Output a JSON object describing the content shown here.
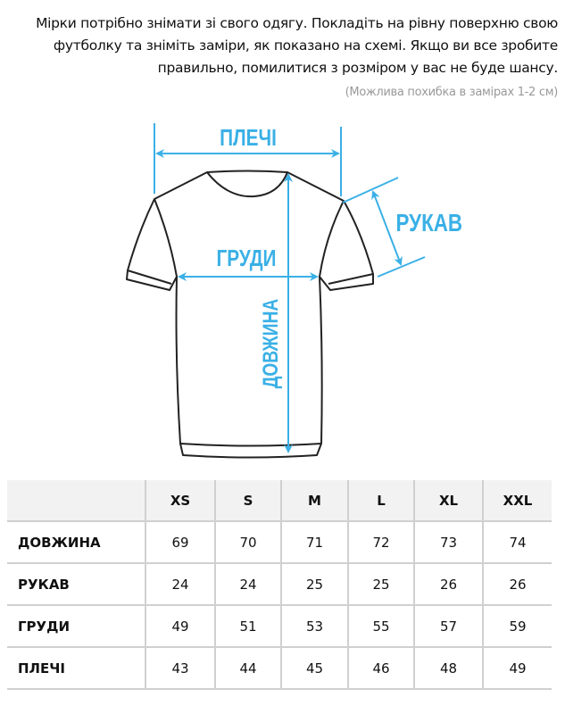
{
  "intro_text": "Мірки потрібно знімати зі свого одягу. Покладіть на рівну поверхню свою футболку та зніміть заміри, як показано на схемі. Якщо ви все зробите правильно, помилитися з розміром у вас не буде шансу.",
  "note": "(Можлива похибка в замірах 1-2 см)",
  "diagram": {
    "accent_color": "#3ab0e6",
    "labels": {
      "shoulders": "ПЛЕЧІ",
      "chest": "ГРУДИ",
      "sleeve": "РУКАВ",
      "length": "ДОВЖИНА"
    }
  },
  "size_table": {
    "headers": [
      "",
      "XS",
      "S",
      "M",
      "L",
      "XL",
      "XXL"
    ],
    "rows": [
      {
        "label": "ДОВЖИНА",
        "values": [
          "69",
          "70",
          "71",
          "72",
          "73",
          "74"
        ]
      },
      {
        "label": "РУКАВ",
        "values": [
          "24",
          "24",
          "25",
          "25",
          "26",
          "26"
        ]
      },
      {
        "label": "ГРУДИ",
        "values": [
          "49",
          "51",
          "53",
          "55",
          "57",
          "59"
        ]
      },
      {
        "label": "ПЛЕЧІ",
        "values": [
          "43",
          "44",
          "45",
          "46",
          "48",
          "49"
        ]
      }
    ]
  }
}
